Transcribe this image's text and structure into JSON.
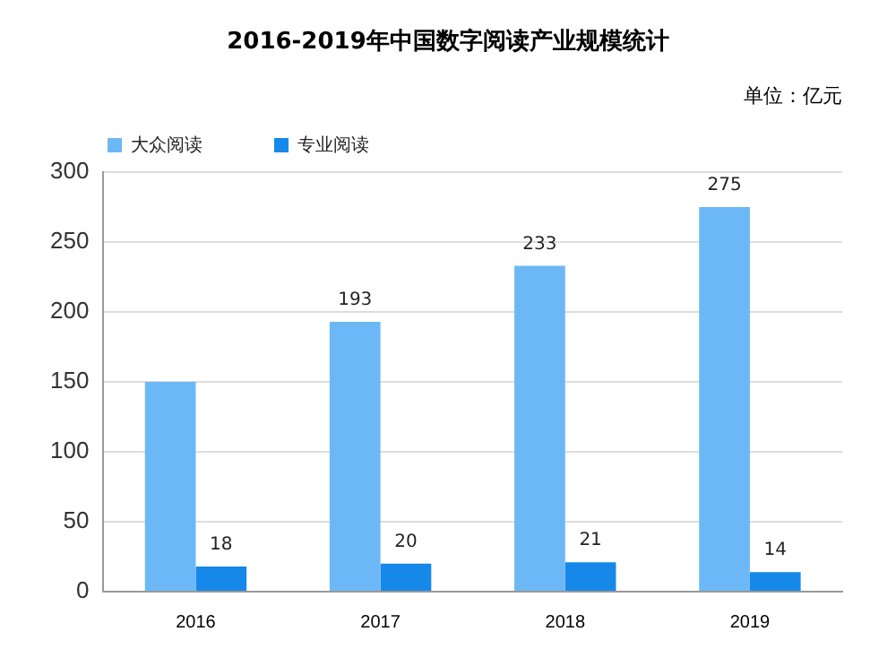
{
  "chart_data": {
    "type": "bar",
    "title": "2016-2019年中国数字阅读产业规模统计",
    "annotations": [
      "单位：亿元"
    ],
    "categories": [
      "2016",
      "2017",
      "2018",
      "2019"
    ],
    "series": [
      {
        "name": "大众阅读",
        "color": "#6cb8f6",
        "values": [
          150,
          193,
          233,
          275
        ],
        "value_labels": [
          null,
          "193",
          "233",
          "275"
        ]
      },
      {
        "name": "专业阅读",
        "color": "#1688ea",
        "values": [
          18,
          20,
          21,
          14
        ],
        "value_labels": [
          "18",
          "20",
          "21",
          "14"
        ]
      }
    ],
    "ylim": [
      0,
      300
    ],
    "yticks": [
      0,
      50,
      100,
      150,
      200,
      250,
      300
    ],
    "grid": "y",
    "legend": "top"
  }
}
